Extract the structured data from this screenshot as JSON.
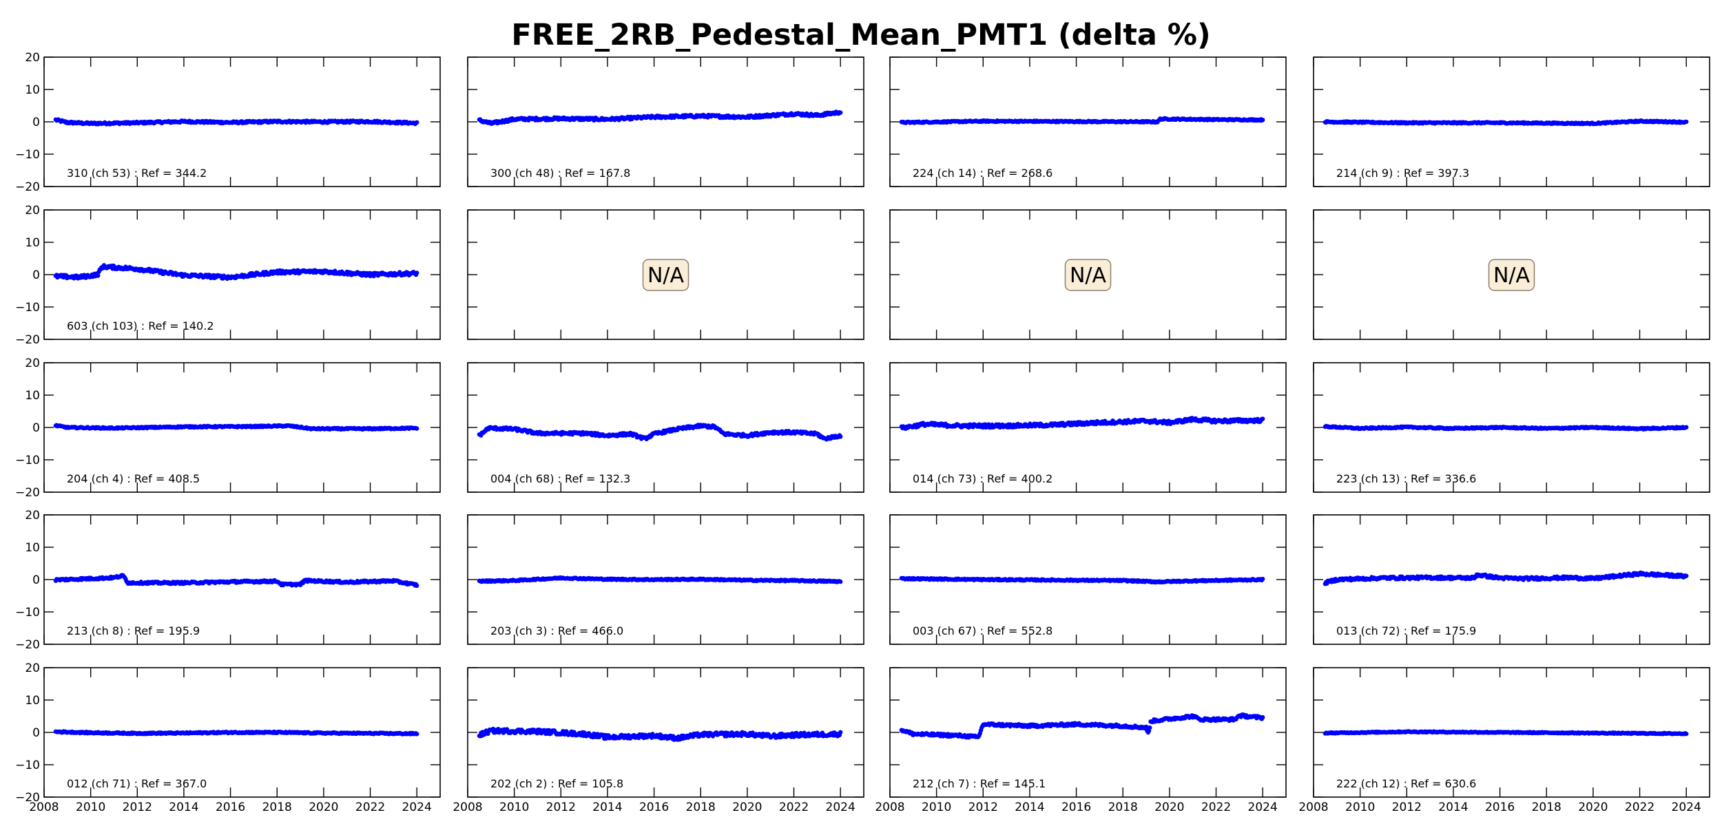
{
  "chart_data": {
    "type": "scatter",
    "title": "FREE_2RB_Pedestal_Mean_PMT1 (delta %)",
    "xlabel": "",
    "ylabel": "",
    "xlim": [
      2008,
      2025
    ],
    "ylim": [
      -20,
      20
    ],
    "x_ticks": [
      "2008",
      "2010",
      "2012",
      "2014",
      "2016",
      "2018",
      "2020",
      "2022",
      "2024"
    ],
    "y_ticks": [
      "20",
      "10",
      "0",
      "−10",
      "−20"
    ],
    "grid": false,
    "marker_color": "#0000ff",
    "na_box_color": "#faeed9",
    "na_text": "N/A",
    "layout": {
      "rows": 5,
      "cols": 4
    },
    "panels": [
      {
        "label": "310 (ch 53) : Ref = 344.2",
        "anchors": [
          [
            2008.5,
            0.6
          ],
          [
            2009,
            -0.2
          ],
          [
            2010,
            -0.5
          ],
          [
            2012,
            -0.3
          ],
          [
            2014,
            0.1
          ],
          [
            2016,
            -0.2
          ],
          [
            2018,
            0.1
          ],
          [
            2020,
            0.0
          ],
          [
            2022,
            0.1
          ],
          [
            2024,
            -0.4
          ]
        ],
        "noise": 0.3
      },
      {
        "label": "300 (ch 48) : Ref = 167.8",
        "anchors": [
          [
            2008.5,
            0.5
          ],
          [
            2009,
            -0.5
          ],
          [
            2010,
            0.8
          ],
          [
            2012,
            1.0
          ],
          [
            2014,
            0.8
          ],
          [
            2016,
            1.5
          ],
          [
            2018,
            1.8
          ],
          [
            2020,
            1.5
          ],
          [
            2022,
            2.5
          ],
          [
            2023,
            2.0
          ],
          [
            2024,
            3.0
          ]
        ],
        "noise": 0.4
      },
      {
        "label": "224 (ch 14) : Ref = 268.6",
        "anchors": [
          [
            2008.5,
            -0.2
          ],
          [
            2012,
            0.2
          ],
          [
            2016,
            0.1
          ],
          [
            2019.5,
            0.0
          ],
          [
            2019.6,
            0.9
          ],
          [
            2022,
            0.7
          ],
          [
            2024,
            0.6
          ]
        ],
        "noise": 0.2
      },
      {
        "label": "214 (ch 9) : Ref = 397.3",
        "anchors": [
          [
            2008.5,
            0.0
          ],
          [
            2012,
            -0.3
          ],
          [
            2016,
            -0.3
          ],
          [
            2020,
            -0.5
          ],
          [
            2022,
            0.2
          ],
          [
            2024,
            -0.1
          ]
        ],
        "noise": 0.2
      },
      {
        "label": "603 (ch 103) : Ref = 140.2",
        "anchors": [
          [
            2008.5,
            -0.5
          ],
          [
            2009.5,
            -0.8
          ],
          [
            2010.3,
            0.0
          ],
          [
            2010.5,
            2.5
          ],
          [
            2012,
            1.8
          ],
          [
            2013,
            0.8
          ],
          [
            2014,
            -0.2
          ],
          [
            2016,
            -0.8
          ],
          [
            2018,
            0.8
          ],
          [
            2020,
            1.0
          ],
          [
            2022,
            0.0
          ],
          [
            2024,
            0.4
          ]
        ],
        "noise": 0.5
      },
      {
        "label": "",
        "na": true
      },
      {
        "label": "",
        "na": true
      },
      {
        "label": "",
        "na": true
      },
      {
        "label": "204 (ch 4) : Ref = 408.5",
        "anchors": [
          [
            2008.5,
            0.6
          ],
          [
            2009,
            0.0
          ],
          [
            2011,
            -0.2
          ],
          [
            2014,
            0.2
          ],
          [
            2017,
            0.3
          ],
          [
            2018.5,
            0.5
          ],
          [
            2019.5,
            -0.4
          ],
          [
            2022,
            -0.4
          ],
          [
            2024,
            -0.2
          ]
        ],
        "noise": 0.2
      },
      {
        "label": "004 (ch 68) : Ref = 132.3",
        "anchors": [
          [
            2008.5,
            -2.5
          ],
          [
            2008.9,
            -0.2
          ],
          [
            2010,
            -0.5
          ],
          [
            2011,
            -1.8
          ],
          [
            2013,
            -1.8
          ],
          [
            2014,
            -2.5
          ],
          [
            2015,
            -2.0
          ],
          [
            2015.6,
            -3.5
          ],
          [
            2016,
            -2.0
          ],
          [
            2017,
            -0.5
          ],
          [
            2018,
            0.5
          ],
          [
            2018.6,
            0.2
          ],
          [
            2019,
            -2.0
          ],
          [
            2020,
            -2.5
          ],
          [
            2021,
            -1.5
          ],
          [
            2022,
            -1.5
          ],
          [
            2023,
            -2.0
          ],
          [
            2023.3,
            -3.5
          ],
          [
            2024,
            -2.5
          ]
        ],
        "noise": 0.4
      },
      {
        "label": "014 (ch 73) : Ref = 400.2",
        "anchors": [
          [
            2008.5,
            -0.2
          ],
          [
            2009.5,
            1.0
          ],
          [
            2011,
            0.5
          ],
          [
            2013,
            0.5
          ],
          [
            2015,
            0.8
          ],
          [
            2017,
            1.5
          ],
          [
            2019,
            2.0
          ],
          [
            2020,
            1.5
          ],
          [
            2021,
            2.5
          ],
          [
            2022,
            2.0
          ],
          [
            2024,
            2.2
          ]
        ],
        "noise": 0.5
      },
      {
        "label": "223 (ch 13) : Ref = 336.6",
        "anchors": [
          [
            2008.5,
            0.3
          ],
          [
            2010,
            -0.3
          ],
          [
            2012,
            0.1
          ],
          [
            2014,
            -0.3
          ],
          [
            2016,
            0.0
          ],
          [
            2018,
            -0.3
          ],
          [
            2020,
            0.0
          ],
          [
            2022,
            -0.4
          ],
          [
            2024,
            0.0
          ]
        ],
        "noise": 0.2
      },
      {
        "label": "213 (ch 8) : Ref = 195.9",
        "anchors": [
          [
            2008.5,
            -0.1
          ],
          [
            2010,
            0.3
          ],
          [
            2011,
            0.6
          ],
          [
            2011.4,
            1.2
          ],
          [
            2011.6,
            -1.0
          ],
          [
            2014,
            -1.0
          ],
          [
            2016,
            -0.7
          ],
          [
            2018,
            -0.5
          ],
          [
            2018.2,
            -1.5
          ],
          [
            2019,
            -1.5
          ],
          [
            2019.2,
            -0.3
          ],
          [
            2021,
            -0.8
          ],
          [
            2023,
            -0.4
          ],
          [
            2024,
            -1.7
          ]
        ],
        "noise": 0.3
      },
      {
        "label": "203 (ch 3) : Ref = 466.0",
        "anchors": [
          [
            2008.5,
            -0.5
          ],
          [
            2010,
            -0.3
          ],
          [
            2012,
            0.5
          ],
          [
            2014,
            0.1
          ],
          [
            2016,
            0.0
          ],
          [
            2018,
            0.1
          ],
          [
            2020,
            -0.2
          ],
          [
            2022,
            -0.3
          ],
          [
            2024,
            -0.6
          ]
        ],
        "noise": 0.2
      },
      {
        "label": "003 (ch 67) : Ref = 552.8",
        "anchors": [
          [
            2008.5,
            0.3
          ],
          [
            2012,
            0.0
          ],
          [
            2016,
            -0.2
          ],
          [
            2018,
            -0.3
          ],
          [
            2019.5,
            -0.7
          ],
          [
            2021,
            -0.4
          ],
          [
            2024,
            0.0
          ]
        ],
        "noise": 0.2
      },
      {
        "label": "013 (ch 72) : Ref = 175.9",
        "anchors": [
          [
            2008.5,
            -1.0
          ],
          [
            2009,
            0.0
          ],
          [
            2011,
            0.5
          ],
          [
            2013,
            0.6
          ],
          [
            2014.9,
            0.5
          ],
          [
            2015,
            1.5
          ],
          [
            2016,
            0.5
          ],
          [
            2017,
            0.3
          ],
          [
            2019,
            0.6
          ],
          [
            2020,
            0.3
          ],
          [
            2022,
            1.8
          ],
          [
            2024,
            1.0
          ]
        ],
        "noise": 0.4
      },
      {
        "label": "012 (ch 71) : Ref = 367.0",
        "anchors": [
          [
            2008.5,
            0.2
          ],
          [
            2010,
            -0.1
          ],
          [
            2012,
            -0.3
          ],
          [
            2014,
            -0.2
          ],
          [
            2016,
            0.0
          ],
          [
            2018,
            0.0
          ],
          [
            2020,
            -0.2
          ],
          [
            2022,
            -0.3
          ],
          [
            2024,
            -0.4
          ]
        ],
        "noise": 0.2
      },
      {
        "label": "202 (ch 2) : Ref = 105.8",
        "anchors": [
          [
            2008.5,
            -0.8
          ],
          [
            2009,
            0.5
          ],
          [
            2011,
            0.3
          ],
          [
            2013,
            -0.5
          ],
          [
            2014,
            -1.5
          ],
          [
            2016,
            -1.0
          ],
          [
            2017,
            -1.8
          ],
          [
            2018,
            -0.7
          ],
          [
            2020,
            -0.5
          ],
          [
            2021,
            -1.2
          ],
          [
            2022,
            -0.8
          ],
          [
            2024,
            -0.5
          ]
        ],
        "noise": 0.6
      },
      {
        "label": "212 (ch 7) : Ref = 145.1",
        "anchors": [
          [
            2008.5,
            0.8
          ],
          [
            2009,
            -0.5
          ],
          [
            2011,
            -1.0
          ],
          [
            2011.8,
            -1.5
          ],
          [
            2012,
            2.5
          ],
          [
            2014,
            2.0
          ],
          [
            2016,
            2.5
          ],
          [
            2018,
            2.0
          ],
          [
            2019,
            1.5
          ],
          [
            2019.1,
            -0.5
          ],
          [
            2019.2,
            3.5
          ],
          [
            2021,
            5.0
          ],
          [
            2021.3,
            4.0
          ],
          [
            2022.8,
            4.0
          ],
          [
            2023,
            5.2
          ],
          [
            2024,
            4.5
          ]
        ],
        "noise": 0.4
      },
      {
        "label": "222 (ch 12) : Ref = 630.6",
        "anchors": [
          [
            2008.5,
            -0.2
          ],
          [
            2012,
            0.2
          ],
          [
            2016,
            0.0
          ],
          [
            2020,
            -0.2
          ],
          [
            2024,
            -0.4
          ]
        ],
        "noise": 0.15
      }
    ]
  }
}
